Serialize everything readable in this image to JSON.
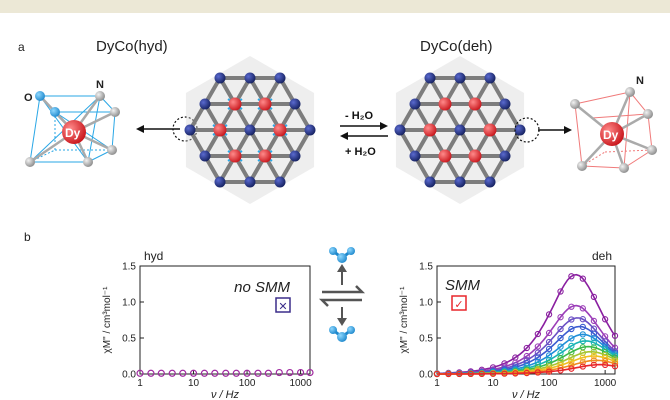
{
  "panel_a": {
    "label": "a",
    "left_title": "DyCo(hyd)",
    "right_title": "DyCo(deh)",
    "arrow_top": "- H₂O",
    "arrow_bottom": "+ H₂O",
    "atom_labels": {
      "O": "O",
      "N_left": "N",
      "Dy_left": "Dy",
      "N_right": "N",
      "Dy_right": "Dy"
    }
  },
  "panel_b": {
    "label": "b",
    "center_icons": [
      "water-molecule-icon",
      "exchange-arrows-icon",
      "water-molecule-icon"
    ]
  },
  "colors": {
    "dy_red": "#e8262b",
    "co_blue": "#1d2b7a",
    "water_blue": "#2aa7e6",
    "framework_gray": "#7d7d7d",
    "hyd_data": "#a02aa0",
    "no_smm_box": "#3b2d8a",
    "smm_box": "#e8262b"
  },
  "chart_data": [
    {
      "type": "scatter",
      "label": "hyd",
      "annotation": "no SMM",
      "annotation_symbol": "✕",
      "ylabel": "χM\" / cm³mol⁻¹",
      "xlabel": "ν / Hz",
      "xscale": "log",
      "xlim": [
        1,
        1500
      ],
      "ylim": [
        0,
        1.5
      ],
      "yticks": [
        "0.0",
        "0.5",
        "1.0",
        "1.5"
      ],
      "xticks": [
        "1",
        "10",
        "100",
        "1000"
      ],
      "series": [
        {
          "color": "#a02aa0",
          "x": [
            1,
            1.6,
            2.5,
            4,
            6.3,
            10,
            16,
            25,
            40,
            63,
            100,
            160,
            250,
            400,
            630,
            1000,
            1500
          ],
          "y": [
            0.01,
            0.01,
            0.01,
            0.01,
            0.01,
            0.01,
            0.01,
            0.01,
            0.01,
            0.01,
            0.01,
            0.01,
            0.01,
            0.02,
            0.02,
            0.02,
            0.02
          ]
        }
      ]
    },
    {
      "type": "scatter",
      "label": "deh",
      "annotation": "SMM",
      "annotation_symbol": "✓",
      "ylabel": "χM\" / cm³mol⁻¹",
      "xlabel": "ν / Hz",
      "xscale": "log",
      "xlim": [
        1,
        1500
      ],
      "ylim": [
        0,
        1.5
      ],
      "yticks": [
        "0.0",
        "0.5",
        "1.0",
        "1.5"
      ],
      "xticks": [
        "1",
        "10",
        "100",
        "1000"
      ],
      "series": [
        {
          "color": "#8a1fa0",
          "peak": 1.38,
          "fpeak": 300
        },
        {
          "color": "#9b3db8",
          "peak": 0.95,
          "fpeak": 300
        },
        {
          "color": "#6a4fc4",
          "peak": 0.78,
          "fpeak": 320
        },
        {
          "color": "#3a5bd0",
          "peak": 0.66,
          "fpeak": 350
        },
        {
          "color": "#1f8fd8",
          "peak": 0.55,
          "fpeak": 400
        },
        {
          "color": "#19b4b4",
          "peak": 0.46,
          "fpeak": 450
        },
        {
          "color": "#3cba4a",
          "peak": 0.38,
          "fpeak": 500
        },
        {
          "color": "#a6c531",
          "peak": 0.31,
          "fpeak": 560
        },
        {
          "color": "#f0c020",
          "peak": 0.25,
          "fpeak": 620
        },
        {
          "color": "#f08a20",
          "peak": 0.19,
          "fpeak": 700
        },
        {
          "color": "#e8262b",
          "peak": 0.13,
          "fpeak": 800
        }
      ]
    }
  ]
}
